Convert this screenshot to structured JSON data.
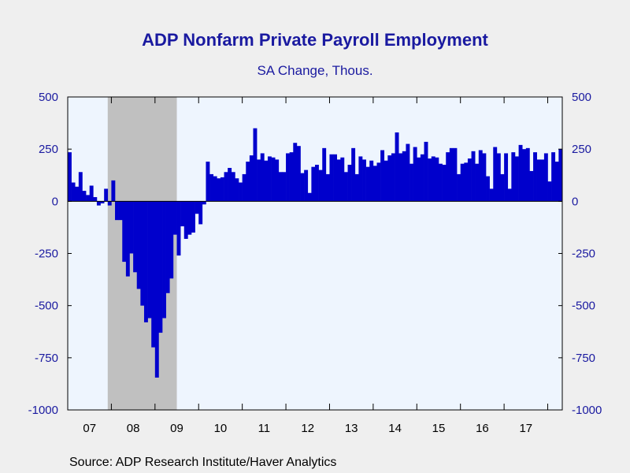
{
  "chart_data": {
    "type": "bar",
    "title": "ADP Nonfarm Private Payroll Employment",
    "subtitle": "SA Change, Thous.",
    "source": "Source:  ADP Research Institute/Haver Analytics",
    "ylim": [
      -1000,
      500
    ],
    "y_ticks": [
      500,
      250,
      0,
      -250,
      -500,
      -750,
      -1000
    ],
    "y_tick_labels": [
      "500",
      "250",
      "0",
      "-250",
      "-500",
      "-750",
      "-1000"
    ],
    "x_tick_labels": [
      "07",
      "08",
      "09",
      "10",
      "11",
      "12",
      "13",
      "14",
      "15",
      "16",
      "17"
    ],
    "start": "2007-01",
    "frequency": "monthly",
    "values": [
      235,
      90,
      70,
      140,
      50,
      30,
      75,
      20,
      -20,
      -10,
      60,
      -20,
      100,
      -90,
      -90,
      -290,
      -360,
      -250,
      -340,
      -420,
      -500,
      -580,
      -560,
      -700,
      -845,
      -630,
      -560,
      -440,
      -370,
      -160,
      -260,
      -120,
      -180,
      -160,
      -150,
      -60,
      -110,
      -15,
      190,
      130,
      120,
      110,
      115,
      140,
      160,
      140,
      110,
      90,
      130,
      190,
      220,
      350,
      200,
      230,
      195,
      215,
      210,
      200,
      140,
      140,
      230,
      235,
      280,
      265,
      135,
      150,
      40,
      165,
      175,
      150,
      255,
      130,
      225,
      225,
      200,
      210,
      140,
      175,
      255,
      130,
      215,
      200,
      165,
      195,
      170,
      185,
      245,
      195,
      220,
      230,
      330,
      230,
      240,
      275,
      180,
      260,
      210,
      225,
      285,
      205,
      215,
      210,
      180,
      175,
      235,
      255,
      255,
      130,
      180,
      185,
      205,
      240,
      180,
      245,
      230,
      120,
      60,
      260,
      230,
      130,
      230,
      60,
      235,
      215,
      270,
      250,
      255,
      145,
      235,
      200,
      200,
      230,
      95,
      235,
      190,
      250
    ],
    "recession": {
      "start": "2007-12",
      "end": "2009-06"
    },
    "colors": {
      "bar": "#0000cc",
      "plot_bg": "#eef5fe",
      "recession": "#c0c0c0",
      "axis_text": "#1a1aa0"
    }
  }
}
